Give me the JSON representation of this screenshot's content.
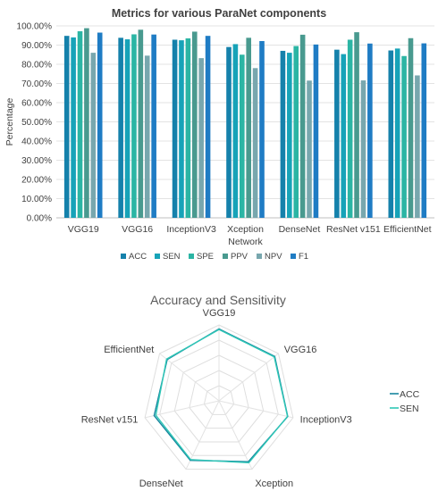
{
  "chart_data": [
    {
      "type": "bar",
      "title": "Metrics for various ParaNet components",
      "xlabel": "Network",
      "ylabel": "Percentage",
      "ylim": [
        0,
        100
      ],
      "yticks": [
        "0.00%",
        "10.00%",
        "20.00%",
        "30.00%",
        "40.00%",
        "50.00%",
        "60.00%",
        "70.00%",
        "80.00%",
        "90.00%",
        "100.00%"
      ],
      "categories": [
        "VGG19",
        "VGG16",
        "InceptionV3",
        "Xception",
        "DenseNet",
        "ResNet v151",
        "EfficientNet"
      ],
      "legend_position": "bottom",
      "grid": true,
      "series": [
        {
          "name": "ACC",
          "color": "#1581ab",
          "values": [
            94.8,
            93.8,
            92.8,
            89.0,
            87.0,
            87.6,
            87.2
          ]
        },
        {
          "name": "SEN",
          "color": "#17a3b8",
          "values": [
            94.0,
            93.0,
            92.5,
            90.5,
            86.0,
            85.3,
            88.2
          ]
        },
        {
          "name": "SPE",
          "color": "#2bb5a4",
          "values": [
            97.2,
            95.6,
            93.5,
            85.0,
            89.5,
            92.8,
            84.3
          ]
        },
        {
          "name": "PPV",
          "color": "#499a8f",
          "values": [
            98.8,
            98.0,
            97.0,
            93.8,
            95.4,
            96.7,
            93.6
          ]
        },
        {
          "name": "NPV",
          "color": "#78a7ae",
          "values": [
            86.0,
            84.5,
            83.2,
            78.0,
            71.5,
            71.6,
            74.2
          ]
        },
        {
          "name": "F1",
          "color": "#1f7cc4",
          "values": [
            96.5,
            95.5,
            94.8,
            92.1,
            90.3,
            90.8,
            90.9
          ]
        }
      ]
    },
    {
      "type": "radar",
      "title": "Accuracy and Sensitivity",
      "axes": [
        "VGG19",
        "VGG16",
        "InceptionV3",
        "Xception",
        "DenseNet",
        "ResNet v151",
        "EfficientNet"
      ],
      "rlim": [
        0,
        100
      ],
      "legend_position": "right",
      "series": [
        {
          "name": "ACC",
          "color": "#17869e",
          "values": [
            94.8,
            93.8,
            92.8,
            89.0,
            87.0,
            87.6,
            87.2
          ]
        },
        {
          "name": "SEN",
          "color": "#2ec6b6",
          "values": [
            94.0,
            93.0,
            92.5,
            90.5,
            86.0,
            85.3,
            88.2
          ]
        }
      ]
    }
  ]
}
